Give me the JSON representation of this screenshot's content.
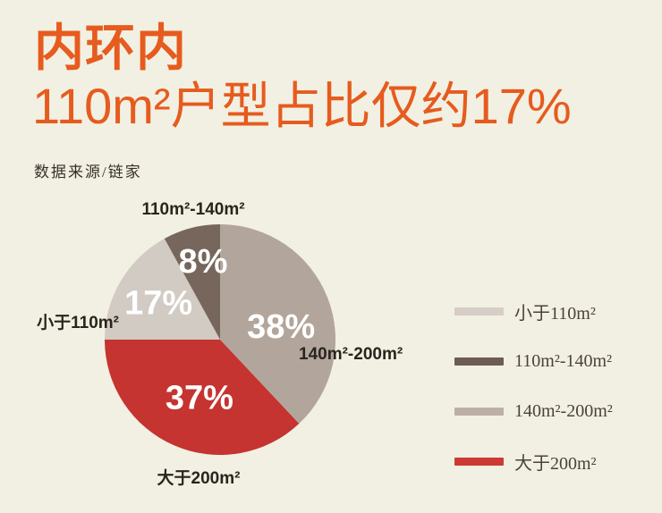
{
  "page": {
    "background_color": "#f2f0e2"
  },
  "header": {
    "title": "内环内",
    "subtitle": "110m²户型占比仅约17%",
    "source": "数据来源/链家",
    "accent_color": "#e65b1e"
  },
  "chart_data": {
    "type": "pie",
    "title": "内环内 110m²户型占比仅约17%",
    "source": "数据来源/链家",
    "start_angle_deg": 0,
    "direction": "clockwise",
    "legend_position": "right",
    "percent_label_color": "#ffffff",
    "callout_label_color": "#2b241e",
    "slices": [
      {
        "label": "140m²-200m²",
        "value": 38,
        "pct_label": "38%",
        "color": "#b2a69c"
      },
      {
        "label": "大于200m²",
        "value": 37,
        "pct_label": "37%",
        "color": "#c53430"
      },
      {
        "label": "小于110m²",
        "value": 17,
        "pct_label": "17%",
        "color": "#d2cbc3"
      },
      {
        "label": "110m²-140m²",
        "value": 8,
        "pct_label": "8%",
        "color": "#76665b"
      }
    ],
    "legend": [
      {
        "label": "小于110m²",
        "color": "#d6cec6"
      },
      {
        "label": "110m²-140m²",
        "color": "#6c5c52"
      },
      {
        "label": "140m²-200m²",
        "color": "#bcafa7"
      },
      {
        "label": "大于200m²",
        "color": "#cc3a33"
      }
    ]
  }
}
